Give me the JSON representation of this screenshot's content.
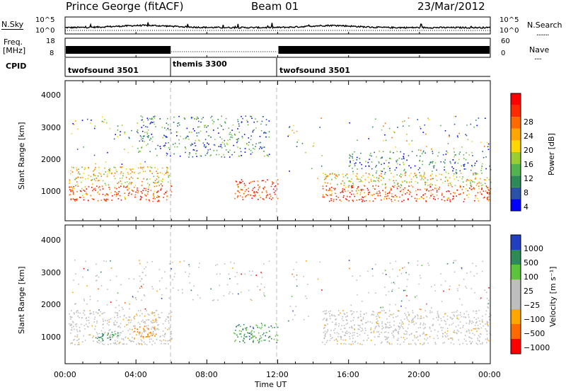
{
  "header": {
    "station": "Prince George (fitACF)",
    "beam": "Beam 01",
    "date": "23/Mar/2012"
  },
  "noise_panel": {
    "left_label": "N.Sky",
    "left_ticks": [
      "10^5",
      "10^0"
    ],
    "right_ticks": [
      "10^5",
      "10^0"
    ],
    "right_label": "N.Search"
  },
  "freq_panel": {
    "left_label_1": "Freq.",
    "left_label_2": "[MHz]",
    "left_ticks": [
      "18",
      "8"
    ],
    "right_ticks": [
      "60",
      "0"
    ],
    "right_label": "Nave"
  },
  "cpid": {
    "label": "CPID",
    "segments": [
      {
        "name": "twofsound 3501",
        "start_hr": 0,
        "end_hr": 6
      },
      {
        "name": "themis 3300",
        "start_hr": 6,
        "end_hr": 12
      },
      {
        "name": "twofsound 3501",
        "start_hr": 12,
        "end_hr": 24
      }
    ]
  },
  "power_panel": {
    "ylabel": "Slant Range [km]",
    "yticks": [
      "4000",
      "3000",
      "2000",
      "1000"
    ],
    "colorbar_label": "Power [dB]",
    "colorbar_ticks": [
      "28",
      "24",
      "20",
      "16",
      "12",
      "8",
      "4"
    ],
    "colors": [
      "#0000ff",
      "#2a53a8",
      "#2d8b57",
      "#52b34f",
      "#9acd32",
      "#ffd700",
      "#ffa500",
      "#ff6a00",
      "#ff2a00",
      "#ff0000"
    ]
  },
  "velocity_panel": {
    "ylabel": "Slant Range [km]",
    "yticks": [
      "4000",
      "3000",
      "2000",
      "1000"
    ],
    "colorbar_label": "Velocity [m s⁻¹]",
    "colorbar_ticks": [
      "1000",
      "500",
      "100",
      "25",
      "−25",
      "−100",
      "−500",
      "−1000"
    ],
    "colors": [
      "#2040c0",
      "#2e8b57",
      "#5cc43c",
      "#bebebe",
      "#bebebe",
      "#ffa500",
      "#ff6a00",
      "#ff0000"
    ]
  },
  "xaxis": {
    "label": "Time UT",
    "ticks": [
      "00:00",
      "04:00",
      "08:00",
      "12:00",
      "16:00",
      "20:00",
      "00:00"
    ]
  },
  "chart_data": {
    "type": "heatmap",
    "title": "Prince George (fitACF)  Beam 01  23/Mar/2012",
    "xlabel": "Time UT",
    "ylabel": "Slant Range [km]",
    "xlim_hours": [
      0,
      24
    ],
    "ylim_km": [
      180,
      4600
    ],
    "panels": [
      {
        "name": "Power [dB]",
        "zlim": [
          0,
          30
        ],
        "scatter_regions": [
          {
            "t_start": 0.3,
            "t_end": 5.8,
            "r_low": 800,
            "r_high": 1900,
            "value": "20-30",
            "note": "strong echoes, red/orange"
          },
          {
            "t_start": 4.0,
            "t_end": 11.5,
            "r_low": 2000,
            "r_high": 3500,
            "value": "8-20",
            "note": "green/blue patchy"
          },
          {
            "t_start": 9.5,
            "t_end": 12.0,
            "r_low": 800,
            "r_high": 1500,
            "value": "20-30"
          },
          {
            "t_start": 14.5,
            "t_end": 23.9,
            "r_low": 800,
            "r_high": 1600,
            "value": "20-30"
          },
          {
            "t_start": 16.0,
            "t_end": 23.9,
            "r_low": 1600,
            "r_high": 2300,
            "value": "8-20"
          }
        ]
      },
      {
        "name": "Velocity [m s-1]",
        "zlim": [
          -1000,
          1000
        ],
        "scatter_regions": [
          {
            "t_start": 0.2,
            "t_end": 5.5,
            "r_low": 800,
            "r_high": 1900,
            "value": "-25 to 25",
            "note": "ground scatter (grey)"
          },
          {
            "t_start": 3.5,
            "t_end": 5.0,
            "r_low": 1000,
            "r_high": 1400,
            "value": "-100 to -500"
          },
          {
            "t_start": 9.5,
            "t_end": 12.0,
            "r_low": 800,
            "r_high": 1500,
            "value": "100 to 500"
          },
          {
            "t_start": 14.5,
            "t_end": 23.9,
            "r_low": 800,
            "r_high": 1900,
            "value": "-25 to 25"
          }
        ]
      }
    ]
  }
}
